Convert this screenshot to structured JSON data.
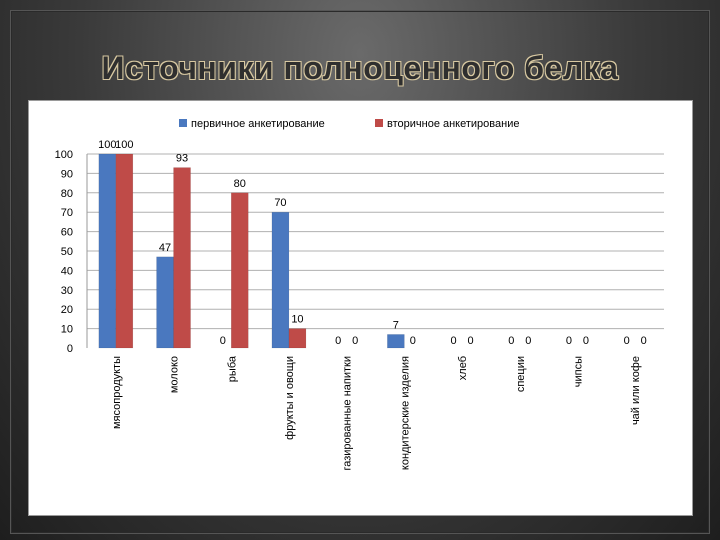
{
  "slide": {
    "title": "Источники полноценного белка"
  },
  "chart_data": {
    "type": "bar",
    "categories": [
      "мясопродукты",
      "молоко",
      "рыба",
      "фрукты и овощи",
      "газированные напитки",
      "кондитерские изделия",
      "хлеб",
      "специи",
      "чипсы",
      "чай или кофе"
    ],
    "series": [
      {
        "name": "первичное анкетирование",
        "color": "#4a78bf",
        "values": [
          100,
          47,
          0,
          70,
          0,
          7,
          0,
          0,
          0,
          0
        ]
      },
      {
        "name": "вторичное анкетирование",
        "color": "#bf4b48",
        "values": [
          100,
          93,
          80,
          10,
          0,
          0,
          0,
          0,
          0,
          0
        ]
      }
    ],
    "ylim": [
      0,
      100
    ],
    "yticks": [
      0,
      10,
      20,
      30,
      40,
      50,
      60,
      70,
      80,
      90,
      100
    ],
    "grid": true,
    "legend": "top"
  }
}
